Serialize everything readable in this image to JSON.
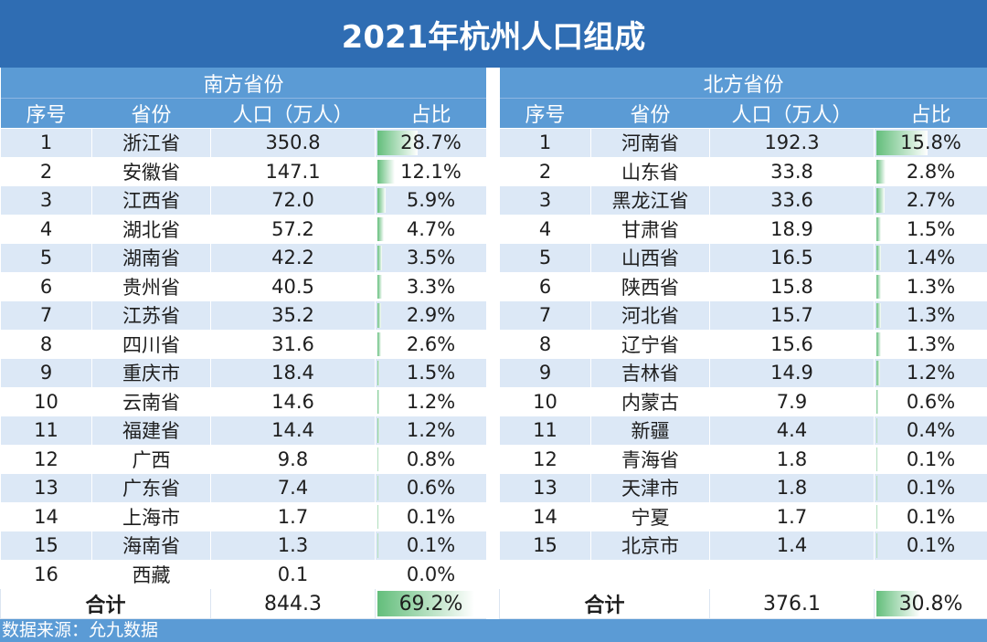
{
  "title": "2021年杭州人口组成",
  "south": {
    "group_label": "南方省份",
    "headers": [
      "序号",
      "省份",
      "人口（万人）",
      "占比"
    ],
    "rows": [
      {
        "no": "1",
        "prov": "浙江省",
        "pop": "350.8",
        "pct": "28.7%",
        "ratio": 0.287
      },
      {
        "no": "2",
        "prov": "安徽省",
        "pop": "147.1",
        "pct": "12.1%",
        "ratio": 0.121
      },
      {
        "no": "3",
        "prov": "江西省",
        "pop": "72.0",
        "pct": "5.9%",
        "ratio": 0.059
      },
      {
        "no": "4",
        "prov": "湖北省",
        "pop": "57.2",
        "pct": "4.7%",
        "ratio": 0.047
      },
      {
        "no": "5",
        "prov": "湖南省",
        "pop": "42.2",
        "pct": "3.5%",
        "ratio": 0.035
      },
      {
        "no": "6",
        "prov": "贵州省",
        "pop": "40.5",
        "pct": "3.3%",
        "ratio": 0.033
      },
      {
        "no": "7",
        "prov": "江苏省",
        "pop": "35.2",
        "pct": "2.9%",
        "ratio": 0.029
      },
      {
        "no": "8",
        "prov": "四川省",
        "pop": "31.6",
        "pct": "2.6%",
        "ratio": 0.026
      },
      {
        "no": "9",
        "prov": "重庆市",
        "pop": "18.4",
        "pct": "1.5%",
        "ratio": 0.015
      },
      {
        "no": "10",
        "prov": "云南省",
        "pop": "14.6",
        "pct": "1.2%",
        "ratio": 0.012
      },
      {
        "no": "11",
        "prov": "福建省",
        "pop": "14.4",
        "pct": "1.2%",
        "ratio": 0.012
      },
      {
        "no": "12",
        "prov": "广西",
        "pop": "9.8",
        "pct": "0.8%",
        "ratio": 0.008
      },
      {
        "no": "13",
        "prov": "广东省",
        "pop": "7.4",
        "pct": "0.6%",
        "ratio": 0.006
      },
      {
        "no": "14",
        "prov": "上海市",
        "pop": "1.7",
        "pct": "0.1%",
        "ratio": 0.001
      },
      {
        "no": "15",
        "prov": "海南省",
        "pop": "1.3",
        "pct": "0.1%",
        "ratio": 0.001
      },
      {
        "no": "16",
        "prov": "西藏",
        "pop": "0.1",
        "pct": "0.0%",
        "ratio": 0.0
      }
    ],
    "total": {
      "label": "合计",
      "pop": "844.3",
      "pct": "69.2%",
      "ratio": 0.692
    }
  },
  "north": {
    "group_label": "北方省份",
    "headers": [
      "序号",
      "省份",
      "人口（万人）",
      "占比"
    ],
    "rows": [
      {
        "no": "1",
        "prov": "河南省",
        "pop": "192.3",
        "pct": "15.8%",
        "ratio": 0.158
      },
      {
        "no": "2",
        "prov": "山东省",
        "pop": "33.8",
        "pct": "2.8%",
        "ratio": 0.028
      },
      {
        "no": "3",
        "prov": "黑龙江省",
        "pop": "33.6",
        "pct": "2.7%",
        "ratio": 0.027
      },
      {
        "no": "4",
        "prov": "甘肃省",
        "pop": "18.9",
        "pct": "1.5%",
        "ratio": 0.015
      },
      {
        "no": "5",
        "prov": "山西省",
        "pop": "16.5",
        "pct": "1.4%",
        "ratio": 0.014
      },
      {
        "no": "6",
        "prov": "陕西省",
        "pop": "15.8",
        "pct": "1.3%",
        "ratio": 0.013
      },
      {
        "no": "7",
        "prov": "河北省",
        "pop": "15.7",
        "pct": "1.3%",
        "ratio": 0.013
      },
      {
        "no": "8",
        "prov": "辽宁省",
        "pop": "15.6",
        "pct": "1.3%",
        "ratio": 0.013
      },
      {
        "no": "9",
        "prov": "吉林省",
        "pop": "14.9",
        "pct": "1.2%",
        "ratio": 0.012
      },
      {
        "no": "10",
        "prov": "内蒙古",
        "pop": "7.9",
        "pct": "0.6%",
        "ratio": 0.006
      },
      {
        "no": "11",
        "prov": "新疆",
        "pop": "4.4",
        "pct": "0.4%",
        "ratio": 0.004
      },
      {
        "no": "12",
        "prov": "青海省",
        "pop": "1.8",
        "pct": "0.1%",
        "ratio": 0.001
      },
      {
        "no": "13",
        "prov": "天津市",
        "pop": "1.8",
        "pct": "0.1%",
        "ratio": 0.001
      },
      {
        "no": "14",
        "prov": "宁夏",
        "pop": "1.7",
        "pct": "0.1%",
        "ratio": 0.001
      },
      {
        "no": "15",
        "prov": "北京市",
        "pop": "1.4",
        "pct": "0.1%",
        "ratio": 0.001
      },
      {
        "no": "",
        "prov": "",
        "pop": "",
        "pct": "",
        "ratio": 0.0
      }
    ],
    "total": {
      "label": "合计",
      "pop": "376.1",
      "pct": "30.8%",
      "ratio": 0.308
    }
  },
  "footer": "数据来源：允九数据",
  "colors": {
    "header_dark": "#2f6db3",
    "header_light": "#5b9bd5",
    "row_band": "#dce8f6",
    "bar": "#63be7b"
  }
}
